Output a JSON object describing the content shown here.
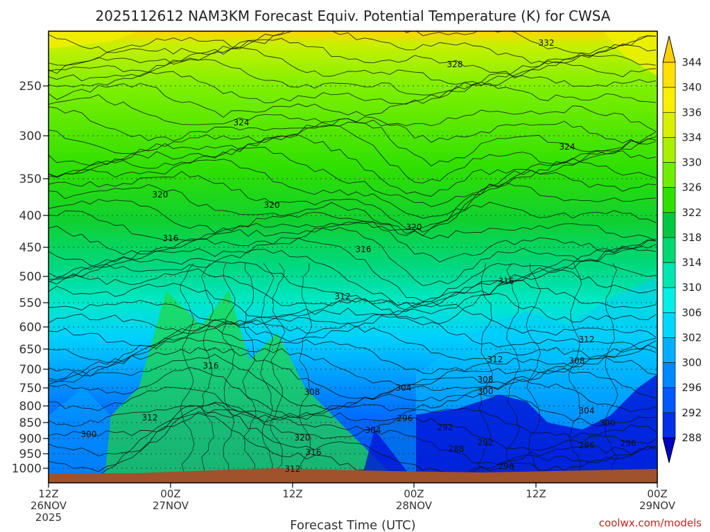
{
  "chart_data": {
    "type": "heatmap",
    "title": "2025112612 NAM3KM Forecast Equiv. Potential Temperature (K) for CWSA",
    "xlabel": "Forecast Time (UTC)",
    "ylabel": "",
    "y_axis": {
      "ticks": [
        "250",
        "300",
        "350",
        "400",
        "450",
        "500",
        "550",
        "600",
        "650",
        "700",
        "750",
        "800",
        "850",
        "900",
        "950",
        "1000"
      ],
      "range": [
        1000,
        200
      ]
    },
    "x_axis": {
      "ticks": [
        {
          "time": "12Z",
          "date": "26NOV",
          "year": "2025"
        },
        {
          "time": "00Z",
          "date": "27NOV",
          "year": ""
        },
        {
          "time": "12Z",
          "date": "",
          "year": ""
        },
        {
          "time": "00Z",
          "date": "28NOV",
          "year": ""
        },
        {
          "time": "12Z",
          "date": "",
          "year": ""
        },
        {
          "time": "00Z",
          "date": "29NOV",
          "year": ""
        }
      ]
    },
    "colorbar": {
      "levels": [
        288,
        292,
        296,
        300,
        302,
        306,
        310,
        314,
        318,
        322,
        326,
        330,
        334,
        336,
        340,
        344
      ],
      "colors": [
        "#0010d0",
        "#0030e8",
        "#0058ff",
        "#0088ff",
        "#00b0ff",
        "#00d8ff",
        "#00f0e8",
        "#00e8b0",
        "#00d870",
        "#00c840",
        "#30e000",
        "#70f000",
        "#a8f000",
        "#d8f000",
        "#f8f000",
        "#ffe000"
      ],
      "underflow_color": "#0000c0",
      "overflow_color": "#ffd000"
    },
    "contour_labels": [
      "332",
      "328",
      "324",
      "324",
      "320",
      "320",
      "320",
      "316",
      "316",
      "316",
      "312",
      "312",
      "312",
      "316",
      "308",
      "308",
      "308",
      "304",
      "304",
      "304",
      "300",
      "300",
      "300",
      "296",
      "296",
      "296",
      "296",
      "292",
      "292",
      "288",
      "320",
      "316",
      "312",
      "312"
    ],
    "terrain_color": "#a0522d",
    "credit": "coolwx.com/models"
  }
}
